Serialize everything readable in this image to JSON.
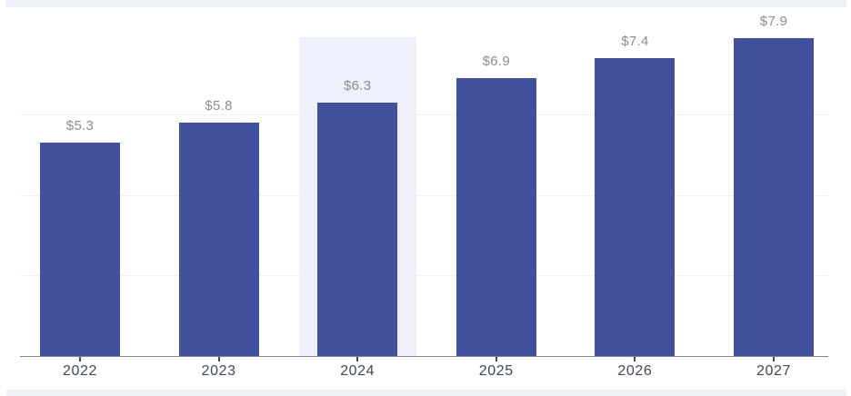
{
  "page": {
    "background": "#ffffff",
    "top_strip_color": "#eef1f6",
    "bottom_strip_color": "#eef1f6"
  },
  "chart_data": {
    "type": "bar",
    "title": "",
    "xlabel": "",
    "ylabel": "",
    "categories": [
      "2022",
      "2023",
      "2024",
      "2025",
      "2026",
      "2027"
    ],
    "values": [
      5.3,
      5.8,
      6.3,
      6.9,
      7.4,
      7.9
    ],
    "value_labels": [
      "$5.3",
      "$5.8",
      "$6.3",
      "$6.9",
      "$7.4",
      "$7.9"
    ],
    "highlighted_category": "2024",
    "ylim": [
      0,
      8.3
    ],
    "grid": true,
    "gridline_values": [
      2,
      4,
      6
    ],
    "legend": null,
    "colors": {
      "bar": "#41519E",
      "highlight_band": "#EDF0FA",
      "value_label": "#8B8E94",
      "axis_label": "#3F4856",
      "tick": "#3F4856",
      "gridline": "#F0F0F1",
      "axis_line": "#7E8593"
    }
  }
}
